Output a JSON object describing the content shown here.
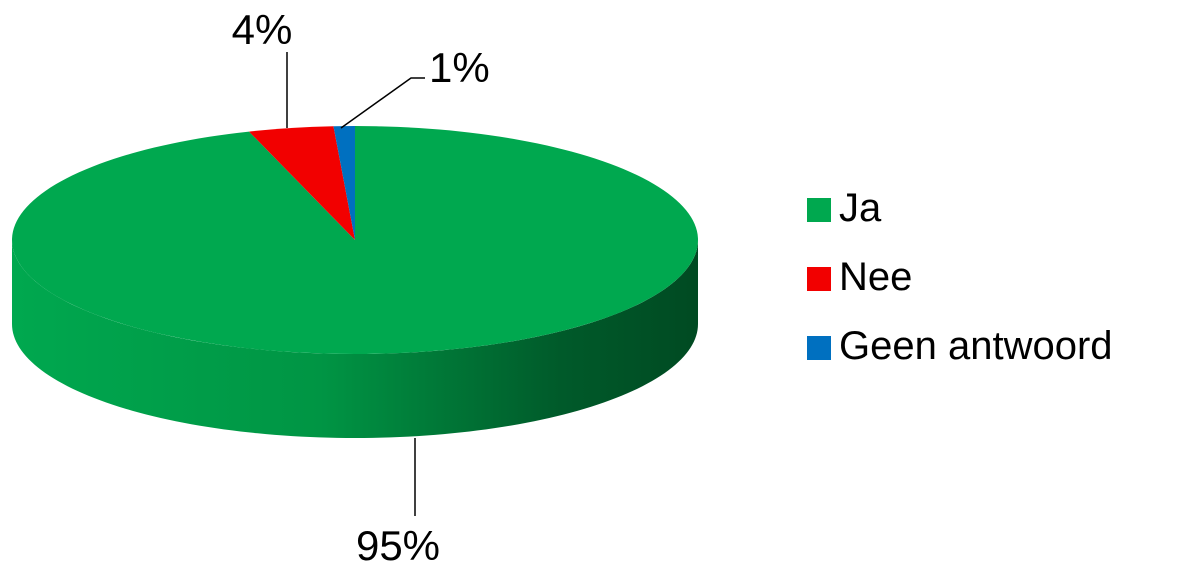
{
  "chart_data": {
    "type": "pie",
    "title": "",
    "style": "3d",
    "categories": [
      "Ja",
      "Nee",
      "Geen antwoord"
    ],
    "values": [
      95,
      4,
      1
    ],
    "data_labels": [
      "95%",
      "4%",
      "1%"
    ],
    "colors": [
      "#00A84F",
      "#F20000",
      "#0070C0"
    ],
    "side_colors": [
      "#009544",
      "#B20000",
      "#005290"
    ],
    "legend": {
      "placement": "right",
      "entries": [
        "Ja",
        "Nee",
        "Geen antwoord"
      ]
    }
  }
}
